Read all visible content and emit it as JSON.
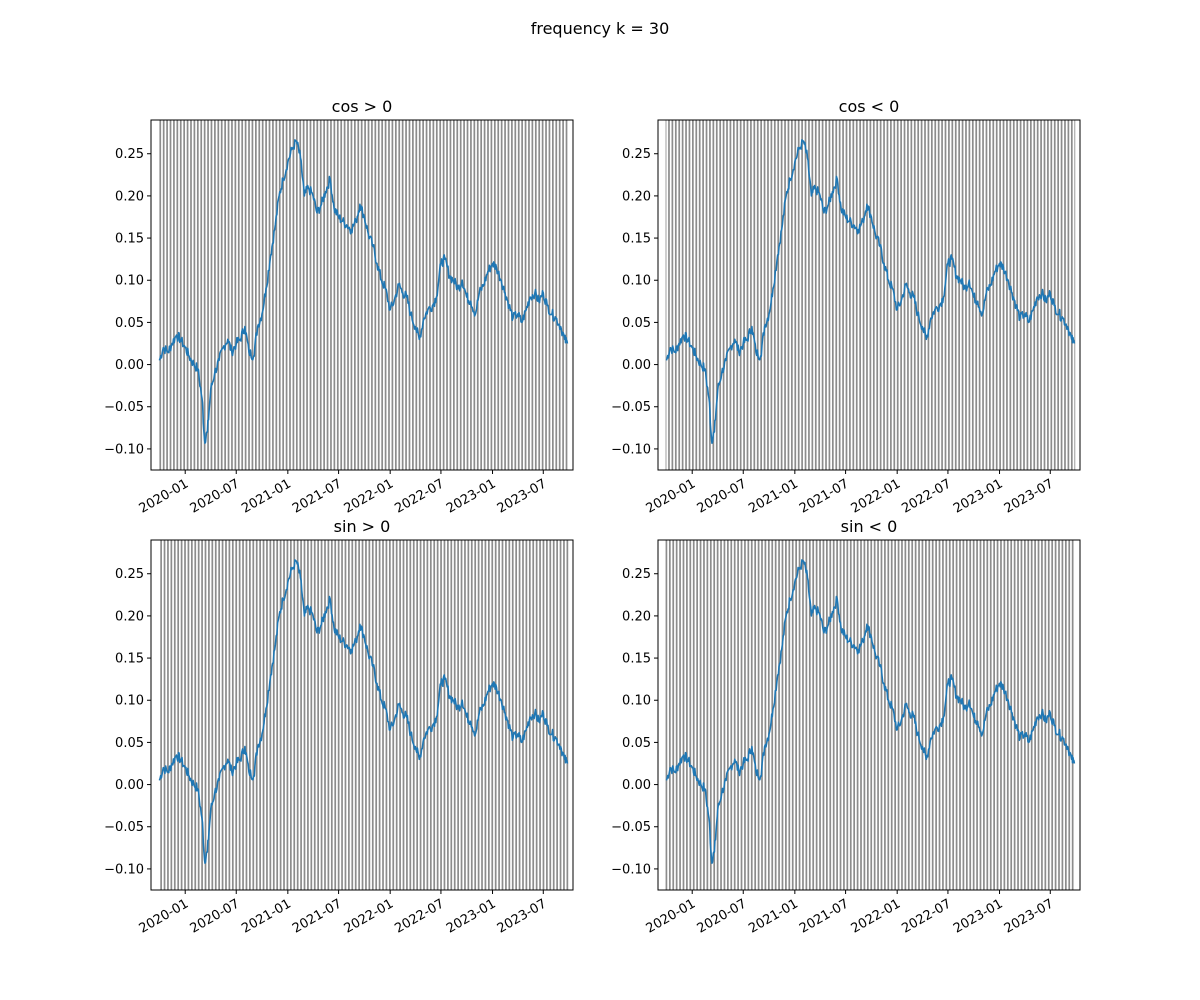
{
  "figure": {
    "suptitle": "frequency k = 30"
  },
  "style": {
    "line_color": "#1f77b4",
    "band_color": "#808080",
    "band_opacity": 0.9,
    "axis_color": "#000000",
    "background": "#ffffff"
  },
  "chart_data": [
    {
      "type": "line",
      "title": "cos > 0",
      "band_phase": 0.0,
      "xlabel": "",
      "ylabel": "",
      "xlim": [
        "2019-09-01",
        "2023-10-15"
      ],
      "ylim": [
        -0.125,
        0.29
      ],
      "x_ticks": [
        "2020-01",
        "2020-07",
        "2021-01",
        "2021-07",
        "2022-01",
        "2022-07",
        "2023-01",
        "2023-07"
      ],
      "y_ticks": [
        "-0.10",
        "-0.05",
        "0.00",
        "0.05",
        "0.10",
        "0.15",
        "0.20",
        "0.25"
      ],
      "grid": false,
      "series": [
        {
          "dates_ref": "series_dates",
          "values_ref": "series_values"
        }
      ]
    },
    {
      "type": "line",
      "title": "cos < 0",
      "band_phase": 0.5,
      "xlabel": "",
      "ylabel": "",
      "xlim": [
        "2019-09-01",
        "2023-10-15"
      ],
      "ylim": [
        -0.125,
        0.29
      ],
      "x_ticks": [
        "2020-01",
        "2020-07",
        "2021-01",
        "2021-07",
        "2022-01",
        "2022-07",
        "2023-01",
        "2023-07"
      ],
      "y_ticks": [
        "-0.10",
        "-0.05",
        "0.00",
        "0.05",
        "0.10",
        "0.15",
        "0.20",
        "0.25"
      ],
      "grid": false,
      "series": [
        {
          "dates_ref": "series_dates",
          "values_ref": "series_values"
        }
      ]
    },
    {
      "type": "line",
      "title": "sin > 0",
      "band_phase": 0.25,
      "xlabel": "",
      "ylabel": "",
      "xlim": [
        "2019-09-01",
        "2023-10-15"
      ],
      "ylim": [
        -0.125,
        0.29
      ],
      "x_ticks": [
        "2020-01",
        "2020-07",
        "2021-01",
        "2021-07",
        "2022-01",
        "2022-07",
        "2023-01",
        "2023-07"
      ],
      "y_ticks": [
        "-0.10",
        "-0.05",
        "0.00",
        "0.05",
        "0.10",
        "0.15",
        "0.20",
        "0.25"
      ],
      "grid": false,
      "series": [
        {
          "dates_ref": "series_dates",
          "values_ref": "series_values"
        }
      ]
    },
    {
      "type": "line",
      "title": "sin < 0",
      "band_phase": 0.75,
      "xlabel": "",
      "ylabel": "",
      "xlim": [
        "2019-09-01",
        "2023-10-15"
      ],
      "ylim": [
        -0.125,
        0.29
      ],
      "x_ticks": [
        "2020-01",
        "2020-07",
        "2021-01",
        "2021-07",
        "2022-01",
        "2022-07",
        "2023-01",
        "2023-07"
      ],
      "y_ticks": [
        "-0.10",
        "-0.05",
        "0.00",
        "0.05",
        "0.10",
        "0.15",
        "0.20",
        "0.25"
      ],
      "grid": false,
      "series": [
        {
          "dates_ref": "series_dates",
          "values_ref": "series_values"
        }
      ]
    }
  ],
  "series_dates": [
    "2019-10-01",
    "2019-10-15",
    "2019-11-01",
    "2019-11-15",
    "2019-12-01",
    "2019-12-15",
    "2020-01-01",
    "2020-01-15",
    "2020-02-01",
    "2020-02-15",
    "2020-03-01",
    "2020-03-10",
    "2020-03-20",
    "2020-04-01",
    "2020-04-15",
    "2020-05-01",
    "2020-05-15",
    "2020-06-01",
    "2020-06-15",
    "2020-07-01",
    "2020-07-15",
    "2020-08-01",
    "2020-08-15",
    "2020-09-01",
    "2020-09-15",
    "2020-10-01",
    "2020-10-15",
    "2020-11-01",
    "2020-11-15",
    "2020-12-01",
    "2020-12-15",
    "2021-01-01",
    "2021-01-15",
    "2021-02-01",
    "2021-02-15",
    "2021-03-01",
    "2021-03-15",
    "2021-04-01",
    "2021-04-15",
    "2021-05-01",
    "2021-05-15",
    "2021-06-01",
    "2021-06-15",
    "2021-07-01",
    "2021-07-15",
    "2021-08-01",
    "2021-08-15",
    "2021-09-01",
    "2021-09-15",
    "2021-10-01",
    "2021-10-15",
    "2021-11-01",
    "2021-11-15",
    "2021-12-01",
    "2021-12-15",
    "2022-01-01",
    "2022-01-15",
    "2022-02-01",
    "2022-02-15",
    "2022-03-01",
    "2022-03-15",
    "2022-04-01",
    "2022-04-15",
    "2022-05-01",
    "2022-05-15",
    "2022-06-01",
    "2022-06-15",
    "2022-07-01",
    "2022-07-15",
    "2022-08-01",
    "2022-08-15",
    "2022-09-01",
    "2022-09-15",
    "2022-10-01",
    "2022-10-15",
    "2022-11-01",
    "2022-11-15",
    "2022-12-01",
    "2022-12-15",
    "2023-01-01",
    "2023-01-15",
    "2023-02-01",
    "2023-02-15",
    "2023-03-01",
    "2023-03-15",
    "2023-04-01",
    "2023-04-15",
    "2023-05-01",
    "2023-05-15",
    "2023-06-01",
    "2023-06-15",
    "2023-07-01",
    "2023-07-15",
    "2023-08-01",
    "2023-08-15",
    "2023-09-01",
    "2023-09-15",
    "2023-09-25"
  ],
  "series_values": [
    0.005,
    0.02,
    0.015,
    0.025,
    0.035,
    0.03,
    0.02,
    0.01,
    0.0,
    -0.005,
    -0.04,
    -0.09,
    -0.08,
    -0.03,
    -0.01,
    0.005,
    0.02,
    0.03,
    0.015,
    0.025,
    0.03,
    0.045,
    0.015,
    0.01,
    0.045,
    0.06,
    0.09,
    0.13,
    0.16,
    0.2,
    0.22,
    0.24,
    0.255,
    0.265,
    0.245,
    0.2,
    0.21,
    0.2,
    0.18,
    0.19,
    0.205,
    0.22,
    0.185,
    0.175,
    0.17,
    0.165,
    0.16,
    0.17,
    0.19,
    0.175,
    0.155,
    0.14,
    0.12,
    0.1,
    0.09,
    0.065,
    0.075,
    0.095,
    0.085,
    0.08,
    0.06,
    0.045,
    0.03,
    0.055,
    0.065,
    0.07,
    0.08,
    0.12,
    0.125,
    0.105,
    0.1,
    0.09,
    0.1,
    0.08,
    0.075,
    0.06,
    0.085,
    0.095,
    0.11,
    0.12,
    0.115,
    0.1,
    0.085,
    0.07,
    0.055,
    0.06,
    0.05,
    0.065,
    0.08,
    0.085,
    0.075,
    0.085,
    0.07,
    0.06,
    0.055,
    0.045,
    0.03,
    0.025
  ]
}
